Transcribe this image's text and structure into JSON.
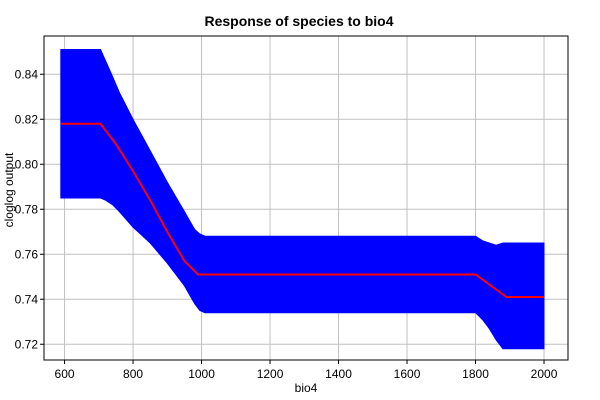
{
  "chart_data": {
    "type": "area",
    "title": "Response of species to bio4",
    "xlabel": "bio4",
    "ylabel": "cloglog output",
    "xlim": [
      540,
      2070
    ],
    "ylim": [
      0.713,
      0.857
    ],
    "xticks": [
      600,
      800,
      1000,
      1200,
      1400,
      1600,
      1800,
      2000
    ],
    "yticks": [
      0.72,
      0.74,
      0.76,
      0.78,
      0.8,
      0.82,
      0.84
    ],
    "ytick_labels": [
      "0.72",
      "0.74",
      "0.76",
      "0.78",
      "0.80",
      "0.82",
      "0.84"
    ],
    "grid": true,
    "series": [
      {
        "role": "band",
        "color": "#0000ff",
        "x": [
          589,
          705,
          720,
          740,
          760,
          800,
          850,
          900,
          950,
          980,
          995,
          1010,
          1050,
          1100,
          1200,
          1400,
          1600,
          1800,
          1820,
          1840,
          1860,
          1880,
          1900,
          1950,
          2000
        ],
        "upper": [
          0.851,
          0.851,
          0.846,
          0.839,
          0.832,
          0.82,
          0.806,
          0.792,
          0.779,
          0.771,
          0.769,
          0.768,
          0.768,
          0.768,
          0.768,
          0.768,
          0.768,
          0.768,
          0.766,
          0.765,
          0.764,
          0.765,
          0.765,
          0.765,
          0.765
        ],
        "lower": [
          0.785,
          0.785,
          0.784,
          0.782,
          0.779,
          0.772,
          0.765,
          0.756,
          0.746,
          0.738,
          0.735,
          0.734,
          0.734,
          0.734,
          0.734,
          0.734,
          0.734,
          0.734,
          0.731,
          0.727,
          0.722,
          0.718,
          0.718,
          0.718,
          0.718
        ]
      },
      {
        "role": "line",
        "color": "#ff0000",
        "x": [
          589,
          705,
          750,
          800,
          850,
          900,
          950,
          990,
          1000,
          1050,
          1200,
          1400,
          1600,
          1800,
          1890,
          2000
        ],
        "y": [
          0.818,
          0.818,
          0.809,
          0.797,
          0.784,
          0.77,
          0.757,
          0.751,
          0.751,
          0.751,
          0.751,
          0.751,
          0.751,
          0.751,
          0.741,
          0.741
        ]
      }
    ]
  }
}
